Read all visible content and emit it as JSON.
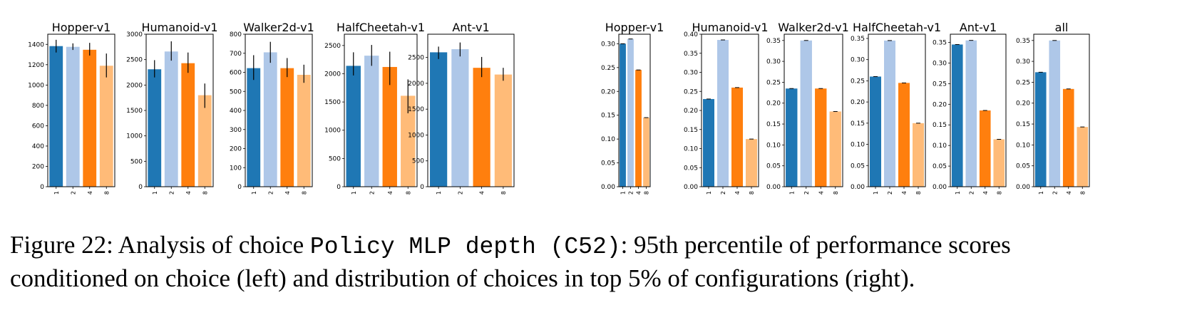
{
  "chart_data": {
    "left_group": [
      {
        "type": "bar",
        "title": "Hopper-v1",
        "categories": [
          "1",
          "2",
          "4",
          "8"
        ],
        "values": [
          1383,
          1376,
          1347,
          1190
        ],
        "errors": [
          [
            1320,
            1445
          ],
          [
            1345,
            1410
          ],
          [
            1290,
            1415
          ],
          [
            1075,
            1310
          ]
        ],
        "ylim": [
          0,
          1500
        ],
        "yticks": [
          0,
          200,
          400,
          600,
          800,
          1000,
          1200,
          1400
        ]
      },
      {
        "type": "bar",
        "title": "Humanoid-v1",
        "categories": [
          "1",
          "2",
          "4",
          "8"
        ],
        "values": [
          2310,
          2660,
          2430,
          1800
        ],
        "errors": [
          [
            2150,
            2490
          ],
          [
            2480,
            2860
          ],
          [
            2240,
            2640
          ],
          [
            1550,
            2030
          ]
        ],
        "ylim": [
          0,
          3000
        ],
        "yticks": [
          0,
          500,
          1000,
          1500,
          2000,
          2500,
          3000
        ]
      },
      {
        "type": "bar",
        "title": "Walker2d-v1",
        "categories": [
          "1",
          "2",
          "4",
          "8"
        ],
        "values": [
          622,
          705,
          622,
          587
        ],
        "errors": [
          [
            560,
            690
          ],
          [
            650,
            760
          ],
          [
            575,
            675
          ],
          [
            545,
            640
          ]
        ],
        "ylim": [
          0,
          800
        ],
        "yticks": [
          0,
          100,
          200,
          300,
          400,
          500,
          600,
          700,
          800
        ]
      },
      {
        "type": "bar",
        "title": "HalfCheetah-v1",
        "categories": [
          "1",
          "2",
          "4",
          "8"
        ],
        "values": [
          2140,
          2320,
          2120,
          1610
        ],
        "errors": [
          [
            1970,
            2380
          ],
          [
            2140,
            2510
          ],
          [
            1800,
            2390
          ],
          [
            1300,
            1900
          ]
        ],
        "ylim": [
          0,
          2700
        ],
        "yticks": [
          0,
          500,
          1000,
          1500,
          2000,
          2500
        ]
      },
      {
        "type": "bar",
        "title": "Ant-v1",
        "categories": [
          "1",
          "2",
          "4",
          "8"
        ],
        "values": [
          2600,
          2660,
          2300,
          2170
        ],
        "errors": [
          [
            2470,
            2710
          ],
          [
            2520,
            2790
          ],
          [
            2120,
            2510
          ],
          [
            2050,
            2300
          ]
        ],
        "ylim": [
          0,
          2950
        ],
        "yticks": [
          0,
          500,
          1000,
          1500,
          2000,
          2500
        ]
      }
    ],
    "right_group": [
      {
        "type": "bar",
        "title": "Hopper-v1",
        "categories": [
          "1",
          "2",
          "4",
          "8"
        ],
        "values": [
          0.3,
          0.31,
          0.245,
          0.145
        ],
        "ylim": [
          0,
          0.32
        ],
        "yticks": [
          "0.00",
          "0.05",
          "0.10",
          "0.15",
          "0.20",
          "0.25",
          "0.30"
        ]
      },
      {
        "type": "bar",
        "title": "Humanoid-v1",
        "categories": [
          "1",
          "2",
          "4",
          "8"
        ],
        "values": [
          0.23,
          0.385,
          0.26,
          0.125
        ],
        "ylim": [
          0,
          0.4
        ],
        "yticks": [
          "0.00",
          "0.05",
          "0.10",
          "0.15",
          "0.20",
          "0.25",
          "0.30",
          "0.35",
          "0.40"
        ]
      },
      {
        "type": "bar",
        "title": "Walker2d-v1",
        "categories": [
          "1",
          "2",
          "4",
          "8"
        ],
        "values": [
          0.235,
          0.35,
          0.235,
          0.18
        ],
        "ylim": [
          0,
          0.365
        ],
        "yticks": [
          "0.00",
          "0.05",
          "0.10",
          "0.15",
          "0.20",
          "0.25",
          "0.30",
          "0.35"
        ]
      },
      {
        "type": "bar",
        "title": "HalfCheetah-v1",
        "categories": [
          "1",
          "2",
          "4",
          "8"
        ],
        "values": [
          0.26,
          0.345,
          0.245,
          0.15
        ],
        "ylim": [
          0,
          0.36
        ],
        "yticks": [
          "0.00",
          "0.05",
          "0.10",
          "0.15",
          "0.20",
          "0.25",
          "0.30",
          "0.35"
        ]
      },
      {
        "type": "bar",
        "title": "Ant-v1",
        "categories": [
          "1",
          "2",
          "4",
          "8"
        ],
        "values": [
          0.345,
          0.355,
          0.185,
          0.115
        ],
        "ylim": [
          0,
          0.37
        ],
        "yticks": [
          "0.00",
          "0.05",
          "0.10",
          "0.15",
          "0.20",
          "0.25",
          "0.30",
          "0.35"
        ]
      },
      {
        "type": "bar",
        "title": "all",
        "categories": [
          "1",
          "2",
          "4",
          "8"
        ],
        "values": [
          0.274,
          0.35,
          0.234,
          0.143
        ],
        "ylim": [
          0,
          0.365
        ],
        "yticks": [
          "0.00",
          "0.05",
          "0.10",
          "0.15",
          "0.20",
          "0.25",
          "0.30",
          "0.35"
        ]
      }
    ],
    "bar_colors": [
      "#1f77b4",
      "#aec7e8",
      "#ff7f0e",
      "#ffbb78"
    ]
  },
  "caption": {
    "prefix": "Figure 22: Analysis of choice ",
    "code": "Policy MLP depth (C52)",
    "suffix_line1": ": 95th percentile of performance scores",
    "line2": "conditioned on choice (left) and distribution of choices in top 5% of configurations (right)."
  }
}
